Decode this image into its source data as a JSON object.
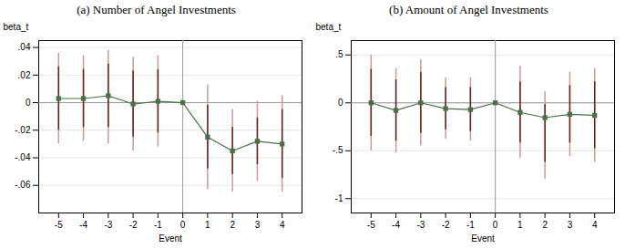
{
  "chart_data": [
    {
      "type": "line",
      "title": "(a)  Number of Angel Investments",
      "xlabel": "Event",
      "ylabel": "beta_t",
      "x": [
        -5,
        -4,
        -3,
        -2,
        -1,
        0,
        1,
        2,
        3,
        4
      ],
      "values": [
        0.003,
        0.003,
        0.005,
        -0.001,
        0.001,
        0.0,
        -0.025,
        -0.035,
        -0.028,
        -0.03
      ],
      "ci_inner": {
        "low": [
          -0.02,
          -0.018,
          -0.018,
          -0.025,
          -0.022,
          0.0,
          -0.048,
          -0.052,
          -0.045,
          -0.055
        ],
        "high": [
          0.026,
          0.024,
          0.028,
          0.023,
          0.024,
          0.0,
          -0.002,
          -0.018,
          -0.011,
          -0.005
        ],
        "color": "#6b2020"
      },
      "ci_outer": {
        "low": [
          -0.03,
          -0.028,
          -0.03,
          -0.035,
          -0.032,
          0.0,
          -0.063,
          -0.065,
          -0.057,
          -0.065
        ],
        "high": [
          0.036,
          0.034,
          0.038,
          0.033,
          0.034,
          0.0,
          0.013,
          -0.005,
          0.001,
          0.005
        ],
        "color": "#cc9999"
      },
      "hline": 0,
      "vline": 0,
      "color": "#4a7048",
      "marker": "square",
      "xlim": [
        -5.8,
        4.8
      ],
      "xticks": [
        -5,
        -4,
        -3,
        -2,
        -1,
        0,
        1,
        2,
        3,
        4
      ],
      "ylim": [
        -0.08,
        0.045
      ],
      "yticks": [
        {
          "value": 0.04,
          "label": ".04"
        },
        {
          "value": 0.02,
          "label": ".02"
        },
        0,
        {
          "value": -0.02,
          "label": "-.02"
        },
        {
          "value": -0.04,
          "label": "-.04"
        },
        {
          "value": -0.06,
          "label": "-.06"
        }
      ],
      "grid": true
    },
    {
      "type": "line",
      "title": "(b)  Amount of Angel Investments",
      "xlabel": "Event",
      "ylabel": "beta_t",
      "x": [
        -5,
        -4,
        -3,
        -2,
        -1,
        0,
        1,
        2,
        3,
        4
      ],
      "values": [
        0.0,
        -0.08,
        0.0,
        -0.06,
        -0.07,
        0.0,
        -0.1,
        -0.155,
        -0.12,
        -0.13
      ],
      "ci_inner": {
        "low": [
          -0.35,
          -0.4,
          -0.32,
          -0.28,
          -0.3,
          0.0,
          -0.42,
          -0.62,
          -0.42,
          -0.48
        ],
        "high": [
          0.35,
          0.24,
          0.32,
          0.16,
          0.16,
          0.0,
          0.22,
          -0.02,
          0.18,
          0.22
        ],
        "color": "#6b2020"
      },
      "ci_outer": {
        "low": [
          -0.5,
          -0.52,
          -0.45,
          -0.38,
          -0.4,
          0.0,
          -0.58,
          -0.8,
          -0.56,
          -0.62
        ],
        "high": [
          0.5,
          0.36,
          0.45,
          0.26,
          0.26,
          0.0,
          0.38,
          0.12,
          0.32,
          0.36
        ],
        "color": "#cc9999"
      },
      "hline": 0,
      "vline": 0,
      "color": "#4a7048",
      "marker": "square",
      "xlim": [
        -5.8,
        4.8
      ],
      "xticks": [
        -5,
        -4,
        -3,
        -2,
        -1,
        0,
        1,
        2,
        3,
        4
      ],
      "ylim": [
        -1.15,
        0.65
      ],
      "yticks": [
        {
          "value": 0.5,
          "label": ".5"
        },
        0,
        {
          "value": -0.5,
          "label": "-.5"
        },
        -1
      ],
      "grid": true
    }
  ]
}
